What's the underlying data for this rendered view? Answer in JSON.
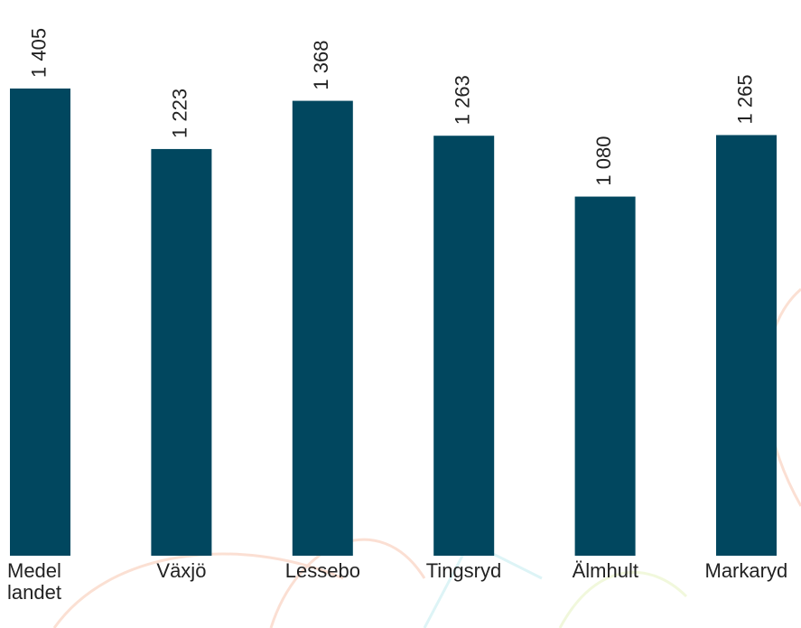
{
  "chart_data": {
    "type": "bar",
    "categories": [
      "Medel landet",
      "Växjö",
      "Lessebo",
      "Tingsryd",
      "Älmhult",
      "Markaryd"
    ],
    "values": [
      1405,
      1223,
      1368,
      1263,
      1080,
      1265
    ],
    "value_labels": [
      "1 405",
      "1 223",
      "1 368",
      "1 263",
      "1 080",
      "1 265"
    ],
    "color": "#01475f"
  }
}
